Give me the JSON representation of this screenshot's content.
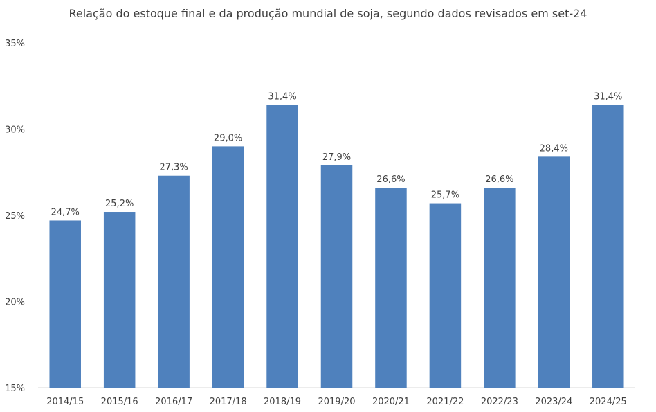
{
  "chart_data": {
    "type": "bar",
    "title": "Relação do estoque final e da produção mundial de soja, segundo dados revisados em set-24",
    "xlabel": "",
    "ylabel": "",
    "categories": [
      "2014/15",
      "2015/16",
      "2016/17",
      "2017/18",
      "2018/19",
      "2019/20",
      "2020/21",
      "2021/22",
      "2022/23",
      "2023/24",
      "2024/25"
    ],
    "values": [
      24.7,
      25.2,
      27.3,
      29.0,
      31.4,
      27.9,
      26.6,
      25.7,
      26.6,
      28.4,
      31.4
    ],
    "data_labels": [
      "24,7%",
      "25,2%",
      "27,3%",
      "29,0%",
      "31,4%",
      "27,9%",
      "26,6%",
      "25,7%",
      "26,6%",
      "28,4%",
      "31,4%"
    ],
    "ylim": [
      15,
      35
    ],
    "yticks": [
      15,
      20,
      25,
      30,
      35
    ],
    "ytick_labels": [
      "15%",
      "20%",
      "25%",
      "30%",
      "35%"
    ],
    "grid": false,
    "legend": "none",
    "bar_color": "#4f81bd"
  }
}
